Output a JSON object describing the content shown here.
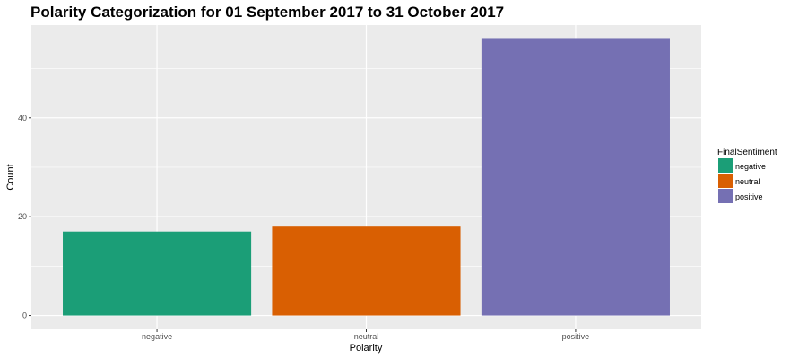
{
  "chart_data": {
    "type": "bar",
    "title": "Polarity Categorization for 01 September 2017 to 31 October 2017",
    "xlabel": "Polarity",
    "ylabel": "Count",
    "categories": [
      "negative",
      "neutral",
      "positive"
    ],
    "values": [
      17,
      18,
      56
    ],
    "ylim": [
      -2.8,
      58.8
    ],
    "yticks": [
      0,
      20,
      40
    ],
    "colors": [
      "#1B9E77",
      "#D95F02",
      "#7570B3"
    ],
    "grid": true,
    "panel_background": "#EBEBEB",
    "legend": {
      "title": "FinalSentiment",
      "position": "right",
      "entries": [
        "negative",
        "neutral",
        "positive"
      ]
    }
  }
}
